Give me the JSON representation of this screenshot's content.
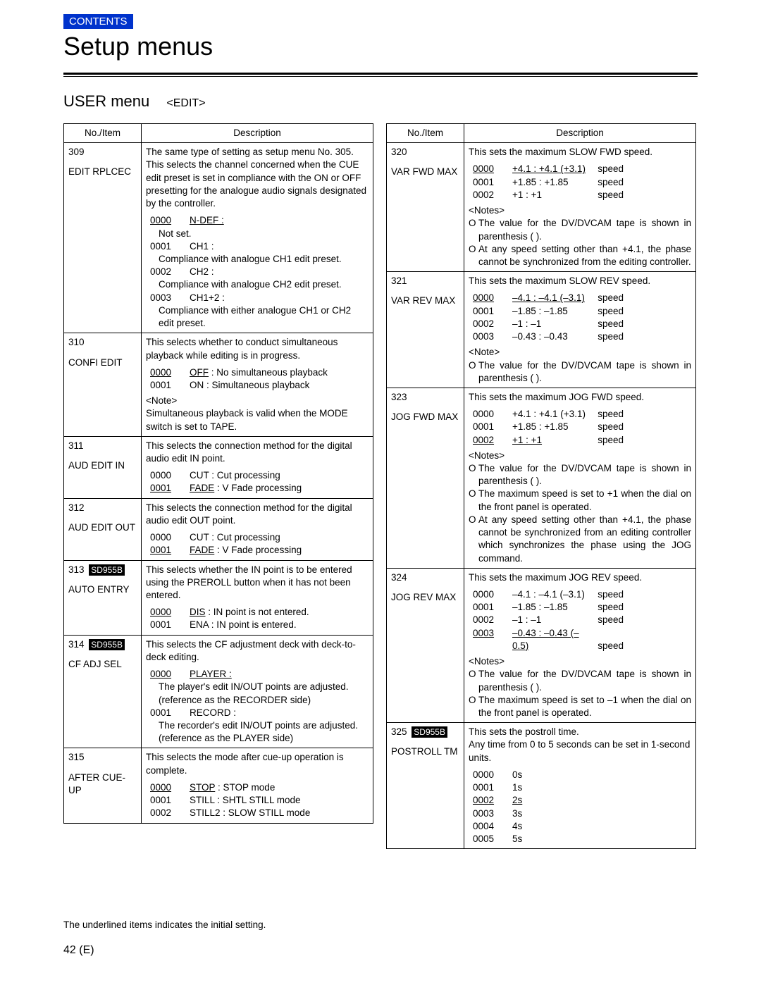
{
  "contents_label": "CONTENTS",
  "page_title": "Setup menus",
  "subhead_main": "USER menu",
  "subhead_edit": "<EDIT>",
  "col_headers": {
    "no_item": "No./Item",
    "description": "Description"
  },
  "badge_text": "SD955B",
  "footer_note": "The underlined items indicates the initial setting.",
  "page_number": "42 (E)",
  "left": [
    {
      "no": "309",
      "item": "EDIT RPLCEC",
      "desc_top": "The same type of setting as setup menu No. 305. This selects the channel concerned when the CUE edit preset is set in compliance with the ON or OFF presetting for the analogue audio signals designated by the controller.",
      "opts": [
        {
          "code": "0000",
          "label": "N-DEF :",
          "u_code": true,
          "u_label": true,
          "sub": "Not set."
        },
        {
          "code": "0001",
          "label": "CH1 :",
          "sub": "Compliance with analogue CH1 edit preset."
        },
        {
          "code": "0002",
          "label": "CH2 :",
          "sub": "Compliance with analogue CH2 edit preset."
        },
        {
          "code": "0003",
          "label": "CH1+2 :",
          "sub": "Compliance with either analogue CH1 or CH2 edit preset."
        }
      ]
    },
    {
      "no": "310",
      "item": "CONFI EDIT",
      "desc_top": "This selects whether to conduct simultaneous playback while editing is in progress.",
      "opts": [
        {
          "code": "0000",
          "label": "OFF : No simultaneous playback",
          "u_code": true,
          "u_label_word": "OFF"
        },
        {
          "code": "0001",
          "label": "ON : Simultaneous playback"
        }
      ],
      "note": "<Note>\nSimultaneous playback is valid when the MODE switch is set to TAPE."
    },
    {
      "no": "311",
      "item": "AUD EDIT IN",
      "desc_top": "This selects the connection method for the digital audio edit IN point.",
      "opts": [
        {
          "code": "0000",
          "label": "CUT : Cut processing"
        },
        {
          "code": "0001",
          "label": "FADE : V Fade processing",
          "u_code": true,
          "u_label_word": "FADE"
        }
      ]
    },
    {
      "no": "312",
      "item": "AUD EDIT OUT",
      "desc_top": "This selects the connection method for the digital audio edit OUT point.",
      "opts": [
        {
          "code": "0000",
          "label": "CUT : Cut processing"
        },
        {
          "code": "0001",
          "label": "FADE : V Fade processing",
          "u_code": true,
          "u_label_word": "FADE"
        }
      ]
    },
    {
      "no": "313",
      "item": "AUTO ENTRY",
      "badge": true,
      "desc_top": "This selects whether the IN point is to be entered using the PREROLL button when it has not been entered.",
      "opts": [
        {
          "code": "0000",
          "label": "DIS : IN point is not entered.",
          "u_code": true,
          "u_label_word": "DIS"
        },
        {
          "code": "0001",
          "label": "ENA : IN point is entered."
        }
      ]
    },
    {
      "no": "314",
      "item": "CF ADJ SEL",
      "badge": true,
      "desc_top": "This selects the CF adjustment deck with deck-to-deck editing.",
      "opts": [
        {
          "code": "0000",
          "label": "PLAYER :",
          "u_code": true,
          "u_label": true,
          "sub": "The player's edit IN/OUT points are adjusted. (reference as the RECORDER side)"
        },
        {
          "code": "0001",
          "label": "RECORD :",
          "sub": "The recorder's edit IN/OUT points are adjusted. (reference as the PLAYER side)"
        }
      ]
    },
    {
      "no": "315",
      "item": "AFTER CUE-UP",
      "desc_top": "This selects the mode after cue-up operation is complete.",
      "opts": [
        {
          "code": "0000",
          "label": "STOP : STOP mode",
          "u_code": true,
          "u_label_word": "STOP"
        },
        {
          "code": "0001",
          "label": "STILL : SHTL STILL mode"
        },
        {
          "code": "0002",
          "label": "STILL2 : SLOW STILL mode"
        }
      ]
    }
  ],
  "right": [
    {
      "no": "320",
      "item": "VAR FWD MAX",
      "desc_top": "This sets the maximum SLOW FWD speed.",
      "speeds": [
        {
          "code": "0000",
          "val": "+4.1 : +4.1 (+3.1)",
          "u_code": true,
          "u_val": true,
          "tail": "speed"
        },
        {
          "code": "0001",
          "val": "+1.85 : +1.85",
          "tail": "speed"
        },
        {
          "code": "0002",
          "val": "+1 : +1",
          "tail": "speed"
        }
      ],
      "notes_label": "<Notes>",
      "notes": [
        "The value for the DV/DVCAM tape is shown in parenthesis (   ).",
        "At any speed setting other than +4.1, the phase cannot be synchronized from the editing controller."
      ]
    },
    {
      "no": "321",
      "item": "VAR REV MAX",
      "desc_top": "This sets the maximum SLOW REV speed.",
      "speeds": [
        {
          "code": "0000",
          "val": "–4.1 : –4.1 (–3.1)",
          "u_code": true,
          "u_val": true,
          "tail": "speed"
        },
        {
          "code": "0001",
          "val": "–1.85 : –1.85",
          "tail": "speed"
        },
        {
          "code": "0002",
          "val": "–1 : –1",
          "tail": "speed"
        },
        {
          "code": "0003",
          "val": "–0.43 : –0.43",
          "tail": "speed"
        }
      ],
      "notes_label": "<Note>",
      "notes": [
        "The value for the DV/DVCAM tape is shown in parenthesis (   )."
      ]
    },
    {
      "no": "323",
      "item": "JOG FWD MAX",
      "desc_top": "This sets the maximum JOG FWD speed.",
      "speeds": [
        {
          "code": "0000",
          "val": "+4.1 : +4.1 (+3.1)",
          "tail": "speed"
        },
        {
          "code": "0001",
          "val": "+1.85 : +1.85",
          "tail": "speed"
        },
        {
          "code": "0002",
          "val": "+1 : +1",
          "u_code": true,
          "u_val": true,
          "tail": "speed"
        }
      ],
      "notes_label": "<Notes>",
      "notes": [
        "The value for the DV/DVCAM tape is shown in parenthesis (   ).",
        "The maximum speed is set to +1 when the dial on the front panel is operated.",
        "At any speed setting other than +4.1, the phase cannot be synchronized from an editing controller which synchronizes the phase using the JOG command."
      ]
    },
    {
      "no": "324",
      "item": "JOG REV MAX",
      "desc_top": "This sets the maximum JOG REV speed.",
      "speeds": [
        {
          "code": "0000",
          "val": "–4.1 : –4.1 (–3.1)",
          "tail": "speed"
        },
        {
          "code": "0001",
          "val": "–1.85 : –1.85",
          "tail": "speed"
        },
        {
          "code": "0002",
          "val": "–1 : –1",
          "tail": "speed"
        },
        {
          "code": "0003",
          "val": "–0.43 : –0.43 (–0.5)",
          "u_code": true,
          "u_val": true,
          "tail": "speed"
        }
      ],
      "notes_label": "<Notes>",
      "notes": [
        "The value for the DV/DVCAM tape is shown in parenthesis (   ).",
        "The maximum speed is set to –1 when the dial on the front panel is operated."
      ]
    },
    {
      "no": "325",
      "item": "POSTROLL TM",
      "badge": true,
      "desc_top": "This sets the postroll time.\nAny time from 0 to 5 seconds can be set in 1-second units.",
      "speeds": [
        {
          "code": "0000",
          "val": "0s"
        },
        {
          "code": "0001",
          "val": "1s"
        },
        {
          "code": "0002",
          "val": "2s",
          "u_code": true,
          "u_val": true
        },
        {
          "code": "0003",
          "val": "3s"
        },
        {
          "code": "0004",
          "val": "4s"
        },
        {
          "code": "0005",
          "val": "5s"
        }
      ]
    }
  ]
}
